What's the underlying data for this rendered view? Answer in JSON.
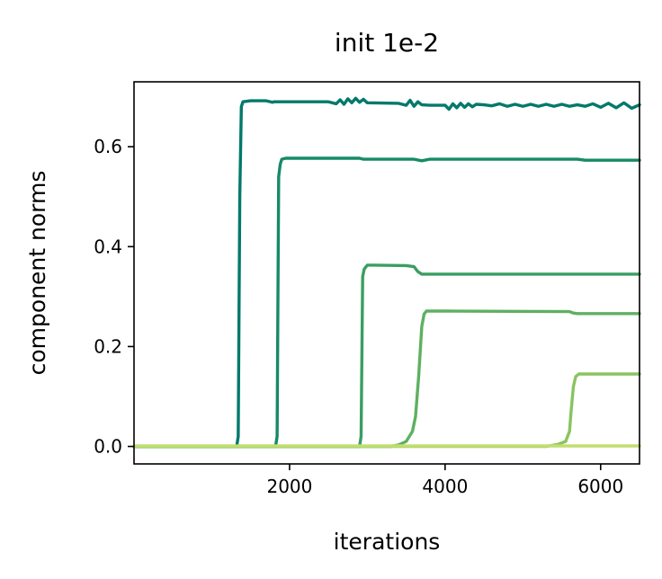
{
  "chart_data": {
    "type": "line",
    "title": "init 1e-2",
    "xlabel": "iterations",
    "ylabel": "component norms",
    "xlim": [
      0,
      6500
    ],
    "ylim": [
      -0.035,
      0.73
    ],
    "xticks": [
      2000,
      4000,
      6000
    ],
    "yticks": [
      0.0,
      0.2,
      0.4,
      0.6
    ],
    "xtick_labels": [
      "2000",
      "4000",
      "6000"
    ],
    "ytick_labels": [
      "0.0",
      "0.2",
      "0.4",
      "0.6"
    ],
    "grid": false,
    "legend": "none",
    "series": [
      {
        "color": "#00796b",
        "x": [
          0,
          1320,
          1340,
          1360,
          1380,
          1400,
          1500,
          1700,
          1780,
          1800,
          2000,
          2500,
          2600,
          2650,
          2700,
          2750,
          2800,
          2850,
          2900,
          2950,
          3000,
          3400,
          3500,
          3550,
          3600,
          3650,
          3700,
          3800,
          4000,
          4050,
          4100,
          4150,
          4200,
          4250,
          4300,
          4350,
          4400,
          4500,
          4600,
          4700,
          4800,
          4900,
          5000,
          5100,
          5200,
          5300,
          5400,
          5500,
          5600,
          5700,
          5800,
          5900,
          6000,
          6100,
          6200,
          6300,
          6400,
          6500
        ],
        "y": [
          0.0,
          0.0,
          0.02,
          0.5,
          0.68,
          0.69,
          0.692,
          0.692,
          0.689,
          0.69,
          0.69,
          0.69,
          0.686,
          0.694,
          0.685,
          0.696,
          0.688,
          0.697,
          0.689,
          0.695,
          0.688,
          0.687,
          0.683,
          0.693,
          0.681,
          0.69,
          0.684,
          0.683,
          0.683,
          0.675,
          0.686,
          0.678,
          0.687,
          0.679,
          0.686,
          0.68,
          0.685,
          0.684,
          0.682,
          0.686,
          0.681,
          0.685,
          0.681,
          0.685,
          0.681,
          0.685,
          0.681,
          0.685,
          0.681,
          0.684,
          0.681,
          0.686,
          0.679,
          0.687,
          0.678,
          0.688,
          0.677,
          0.684
        ]
      },
      {
        "color": "#168a67",
        "x": [
          0,
          1820,
          1840,
          1860,
          1880,
          1900,
          1950,
          2000,
          2900,
          2950,
          3000,
          3600,
          3700,
          3800,
          5700,
          5800,
          6500
        ],
        "y": [
          0.0,
          0.0,
          0.02,
          0.54,
          0.565,
          0.575,
          0.577,
          0.577,
          0.577,
          0.575,
          0.575,
          0.575,
          0.572,
          0.575,
          0.575,
          0.573,
          0.573
        ]
      },
      {
        "color": "#3a9e61",
        "x": [
          0,
          2900,
          2920,
          2940,
          2960,
          3000,
          3100,
          3500,
          3600,
          3650,
          3700,
          3800,
          5700,
          5800,
          6500
        ],
        "y": [
          0.0,
          0.0,
          0.02,
          0.34,
          0.355,
          0.363,
          0.363,
          0.362,
          0.36,
          0.35,
          0.345,
          0.345,
          0.345,
          0.345,
          0.345
        ]
      },
      {
        "color": "#5eb062",
        "x": [
          0,
          3300,
          3400,
          3500,
          3580,
          3620,
          3660,
          3700,
          3730,
          3760,
          3800,
          4000,
          5600,
          5650,
          5700,
          6500
        ],
        "y": [
          0.0,
          0.0,
          0.003,
          0.01,
          0.03,
          0.06,
          0.14,
          0.24,
          0.265,
          0.271,
          0.271,
          0.271,
          0.27,
          0.267,
          0.266,
          0.266
        ]
      },
      {
        "color": "#89c460",
        "x": [
          0,
          5300,
          5450,
          5550,
          5600,
          5620,
          5650,
          5680,
          5720,
          5800,
          6500
        ],
        "y": [
          0.0,
          0.0,
          0.004,
          0.01,
          0.03,
          0.07,
          0.12,
          0.14,
          0.145,
          0.145,
          0.145
        ]
      },
      {
        "color": "#c2de6e",
        "x": [
          0,
          6500
        ],
        "y": [
          0.001,
          0.001
        ]
      }
    ]
  }
}
